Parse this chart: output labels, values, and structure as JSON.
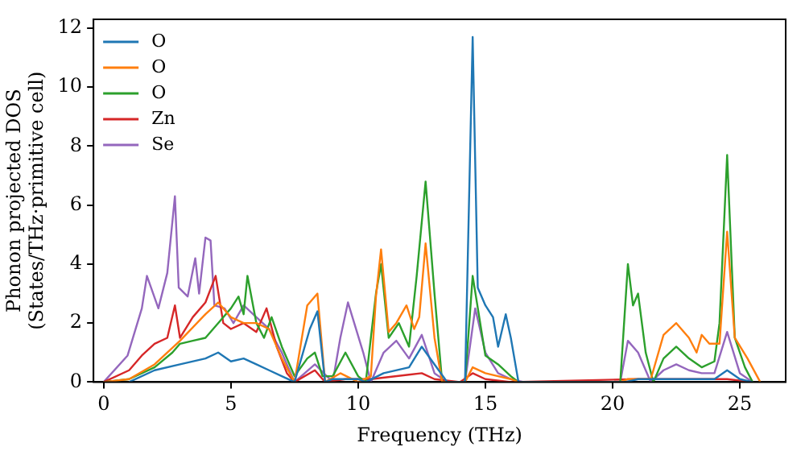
{
  "chart_data": {
    "type": "line",
    "xlabel": "Frequency (THz)",
    "ylabel": "Phonon projected DOS\n(States/THz·primitive cell)",
    "xlim": [
      -0.4,
      26.8
    ],
    "ylim": [
      0,
      12.3
    ],
    "xticks": [
      0,
      5,
      10,
      15,
      20,
      25
    ],
    "yticks": [
      0,
      2,
      4,
      6,
      8,
      10,
      12
    ],
    "grid": false,
    "legend": "top left",
    "marker": "none",
    "line_style": "solid",
    "series": [
      {
        "name": "O",
        "color": "#1f77b4",
        "x": [
          1,
          2,
          3,
          4,
          4.5,
          5,
          5.5,
          6,
          6.5,
          7,
          7.5,
          8.1,
          8.4,
          8.7,
          9,
          10,
          10.3,
          11,
          12,
          12.5,
          13,
          13.5,
          14.2,
          14.5,
          14.7,
          15,
          15.3,
          15.5,
          15.8,
          16,
          16.3,
          20.5,
          21,
          22,
          23,
          24,
          24.5,
          25,
          25.5
        ],
        "values": [
          0,
          0.4,
          0.6,
          0.8,
          1.0,
          0.7,
          0.8,
          0.6,
          0.4,
          0.2,
          0,
          1.8,
          2.4,
          0,
          0.1,
          0.1,
          0,
          0.3,
          0.5,
          1.2,
          0.6,
          0,
          0,
          11.7,
          3.2,
          2.6,
          2.2,
          1.2,
          2.3,
          1.5,
          0,
          0,
          0.1,
          0.1,
          0.1,
          0.1,
          0.4,
          0.1,
          0
        ]
      },
      {
        "name": "O",
        "color": "#ff7f0e",
        "x": [
          0,
          1,
          2,
          3,
          4,
          4.5,
          5,
          5.5,
          6,
          6.5,
          7,
          7.5,
          8,
          8.4,
          8.7,
          9.3,
          10,
          10.5,
          10.7,
          10.9,
          11.2,
          11.5,
          11.9,
          12.2,
          12.4,
          12.65,
          13,
          13.3,
          14.2,
          14.5,
          15,
          15.5,
          16,
          16.3,
          20.3,
          20.6,
          21.5,
          22,
          22.5,
          23,
          23.3,
          23.5,
          23.8,
          24.2,
          24.5,
          24.8,
          25.3,
          25.8
        ],
        "values": [
          0,
          0.1,
          0.6,
          1.4,
          2.3,
          2.7,
          2.2,
          2.0,
          2.0,
          1.8,
          0.8,
          0,
          2.6,
          3.0,
          0,
          0.3,
          0,
          0.2,
          2.9,
          4.5,
          1.7,
          2.0,
          2.6,
          1.8,
          2.2,
          4.7,
          1.5,
          0,
          0,
          0.5,
          0.3,
          0.2,
          0.1,
          0,
          0,
          0.1,
          0.1,
          1.6,
          2.0,
          1.5,
          1.0,
          1.6,
          1.3,
          1.3,
          5.1,
          1.5,
          0.8,
          0
        ]
      },
      {
        "name": "O",
        "color": "#2ca02c",
        "x": [
          0,
          1,
          2,
          2.7,
          3,
          3.5,
          4,
          4.5,
          5,
          5.3,
          5.5,
          5.65,
          6,
          6.3,
          6.6,
          7,
          7.5,
          8,
          8.3,
          8.6,
          9,
          9.5,
          10,
          10.3,
          10.7,
          10.9,
          11.2,
          11.6,
          12,
          12.3,
          12.65,
          13,
          13.3,
          14.2,
          14.5,
          15,
          15.5,
          16,
          16.3,
          20.3,
          20.6,
          20.8,
          21,
          21.3,
          21.6,
          22,
          22.5,
          23,
          23.5,
          24,
          24.2,
          24.5,
          24.8,
          25.2,
          25.5
        ],
        "values": [
          0,
          0.1,
          0.5,
          1.0,
          1.3,
          1.4,
          1.5,
          2.0,
          2.5,
          2.9,
          2.3,
          3.6,
          2.0,
          1.5,
          2.2,
          1.2,
          0.2,
          0.8,
          1.0,
          0.2,
          0.2,
          1.0,
          0.2,
          0,
          3.0,
          4.0,
          1.5,
          2.0,
          1.2,
          3.6,
          6.8,
          3.0,
          0,
          0,
          3.6,
          0.9,
          0.6,
          0.2,
          0,
          0,
          4.0,
          2.6,
          3.0,
          1.0,
          0,
          0.8,
          1.2,
          0.8,
          0.5,
          0.7,
          2.0,
          7.7,
          1.5,
          0.5,
          0
        ]
      },
      {
        "name": "Zn",
        "color": "#d62728",
        "x": [
          0,
          1,
          1.5,
          2,
          2.5,
          2.8,
          3,
          3.5,
          4,
          4.4,
          4.7,
          5,
          5.5,
          6,
          6.4,
          6.8,
          7.2,
          7.5,
          8.3,
          8.7,
          9.5,
          10.5,
          12.5,
          13,
          14,
          14.5,
          15,
          16,
          21,
          24.5,
          25.5
        ],
        "values": [
          0,
          0.4,
          0.9,
          1.3,
          1.5,
          2.6,
          1.5,
          2.2,
          2.7,
          3.6,
          2.0,
          1.8,
          2.0,
          1.7,
          2.5,
          1.2,
          0.3,
          0,
          0.4,
          0,
          0.1,
          0.1,
          0.3,
          0.1,
          0,
          0.3,
          0.1,
          0,
          0.1,
          0.1,
          0
        ]
      },
      {
        "name": "Se",
        "color": "#9467bd",
        "x": [
          0,
          0.94,
          1.5,
          1.7,
          2.15,
          2.5,
          2.8,
          2.95,
          3.3,
          3.6,
          3.75,
          4.0,
          4.2,
          4.35,
          4.75,
          5.1,
          5.5,
          6,
          6.5,
          7,
          7.5,
          8.3,
          9,
          9.3,
          9.6,
          10.2,
          10.5,
          11,
          11.5,
          12,
          12.5,
          13,
          13.5,
          14.2,
          14.6,
          15,
          15.5,
          16,
          16.5,
          20.3,
          20.6,
          21,
          21.5,
          22,
          22.5,
          23,
          23.5,
          24,
          24.5,
          25,
          25.5
        ],
        "values": [
          0,
          0.9,
          2.5,
          3.6,
          2.5,
          3.7,
          6.3,
          3.2,
          2.9,
          4.2,
          3.0,
          4.9,
          4.8,
          2.6,
          2.5,
          2.0,
          2.6,
          2.2,
          1.8,
          1.0,
          0,
          0.6,
          0,
          1.5,
          2.7,
          1.0,
          0,
          1.0,
          1.4,
          0.8,
          1.6,
          0.3,
          0,
          0,
          2.5,
          1.0,
          0.3,
          0.1,
          0,
          0,
          1.4,
          1.0,
          0,
          0.4,
          0.6,
          0.4,
          0.3,
          0.3,
          1.7,
          0.3,
          0
        ]
      }
    ]
  }
}
